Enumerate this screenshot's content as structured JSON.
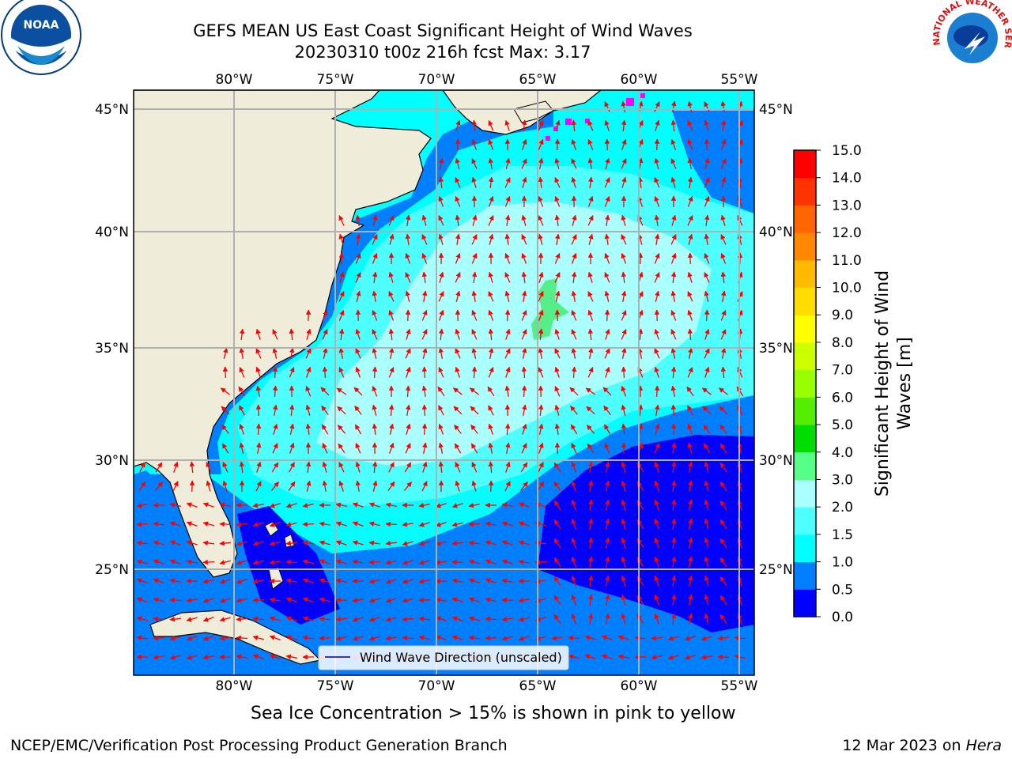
{
  "header": {
    "title_line1": "GEFS MEAN US East Coast Significant Height of Wind Waves",
    "title_line2": "20230310 t00z 216h fcst   Max: 3.17"
  },
  "map": {
    "lon_labels": [
      "80°W",
      "75°W",
      "70°W",
      "65°W",
      "60°W",
      "55°W"
    ],
    "lat_labels": [
      "45°N",
      "40°N",
      "35°N",
      "30°N",
      "25°N"
    ],
    "legend_label": "Wind Wave Direction (unscaled)",
    "arrow_color": "#ff0000",
    "land_color": "#efedda"
  },
  "colorbar": {
    "label_line1": "Significant Height of Wind",
    "label_line2": "Waves [m]",
    "ticks": [
      "0.0",
      "0.5",
      "1.0",
      "1.5",
      "2.0",
      "3.0",
      "4.0",
      "5.0",
      "6.0",
      "7.0",
      "8.0",
      "9.0",
      "10.0",
      "11.0",
      "12.0",
      "13.0",
      "14.0",
      "15.0"
    ],
    "colors": [
      "#0000ff",
      "#0080ff",
      "#00ffff",
      "#4dffff",
      "#aaffff",
      "#55ff88",
      "#00dd00",
      "#55ee00",
      "#99ff00",
      "#ccff00",
      "#ffff00",
      "#ffdd00",
      "#ffbb00",
      "#ff8800",
      "#ff6600",
      "#ff3300",
      "#ff0000"
    ]
  },
  "caption": "Sea Ice Concentration > 15% is shown in pink to yellow",
  "footer": {
    "left": "NCEP/EMC/Verification Post Processing Product Generation Branch",
    "right_prefix": "12 Mar 2023 on ",
    "right_host": "Hera"
  },
  "logos": {
    "noaa_text": "NOAA",
    "nws_text": "NATIONAL WEATHER SERVICE"
  }
}
